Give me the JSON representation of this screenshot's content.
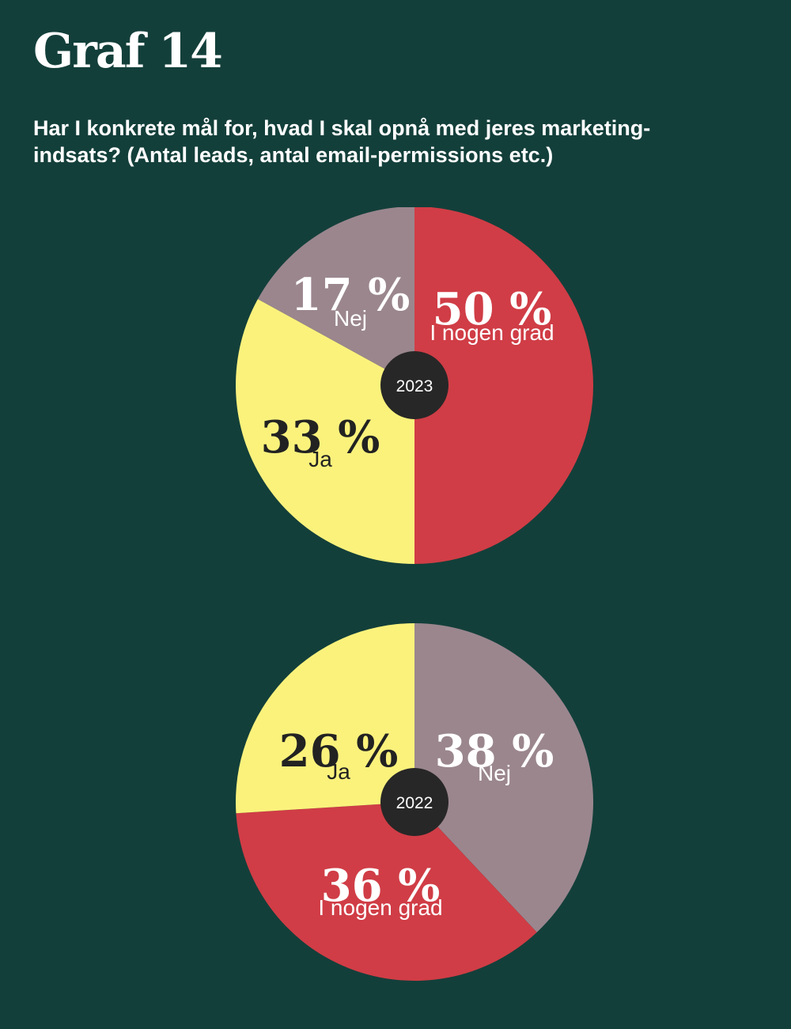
{
  "title": "Graf 14",
  "question": "Har I konkrete mål for, hvad I skal opnå med jeres marketing-indsats? (Antal leads, antal email-permissions etc.)",
  "colors": {
    "background": "#133f3a",
    "i_nogen_grad": "#d03d46",
    "ja": "#fbf27c",
    "nej": "#9b868e",
    "center_badge": "#272727"
  },
  "chart_data": [
    {
      "type": "pie",
      "year_label": "2023",
      "slices": [
        {
          "category": "I nogen grad",
          "value": 50,
          "label": "50 %",
          "color": "#d03d46",
          "text_color": "#ffffff"
        },
        {
          "category": "Ja",
          "value": 33,
          "label": "33 %",
          "color": "#fbf27c",
          "text_color": "#222222"
        },
        {
          "category": "Nej",
          "value": 17,
          "label": "17 %",
          "color": "#9b868e",
          "text_color": "#ffffff"
        }
      ]
    },
    {
      "type": "pie",
      "year_label": "2022",
      "slices": [
        {
          "category": "Nej",
          "value": 38,
          "label": "38 %",
          "color": "#9b868e",
          "text_color": "#ffffff"
        },
        {
          "category": "I nogen grad",
          "value": 36,
          "label": "36 %",
          "color": "#d03d46",
          "text_color": "#ffffff"
        },
        {
          "category": "Ja",
          "value": 26,
          "label": "26 %",
          "color": "#fbf27c",
          "text_color": "#222222"
        }
      ]
    }
  ]
}
